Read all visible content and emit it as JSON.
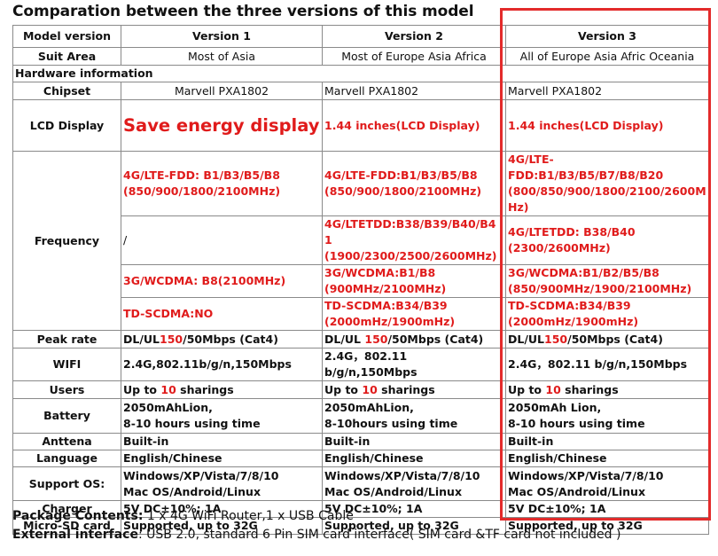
{
  "title": "Comparation between the three versions of this model",
  "header": {
    "col0": "Model version",
    "col1": "Version 1",
    "col2": "Version 2",
    "col3": "Version 3"
  },
  "suit_area": {
    "label": "Suit Area",
    "v1": "Most of Asia",
    "v2": "Most of Europe Asia Africa",
    "v3": "All of Europe Asia Afric Oceania"
  },
  "hardware_section": "Hardware information",
  "chipset": {
    "label": "Chipset",
    "v1": "Marvell PXA1802",
    "v2": "Marvell PXA1802",
    "v3": "Marvell PXA1802"
  },
  "lcd": {
    "label": "LCD Display",
    "v1": "Save energy display",
    "v2": "1.44 inches(LCD Display)",
    "v3": "1.44 inches(LCD Display)"
  },
  "frequency": {
    "label": "Frequency",
    "fdd": {
      "v1": "4G/LTE-FDD: B1/B3/B5/B8 (850/900/1800/2100MHz)",
      "v2": "4G/LTE-FDD:B1/B3/B5/B8 (850/900/1800/2100MHz)",
      "v3": "4G/LTE-FDD:B1/B3/B5/B7/B8/B20 (800/850/900/1800/2100/2600MHz)"
    },
    "tdd": {
      "v1": "/",
      "v2": "4G/LTETDD:B38/B39/B40/B41 (1900/2300/2500/2600MHz)",
      "v3": "4G/LTETDD: B38/B40 (2300/2600MHz)"
    },
    "wcdma": {
      "v1": "3G/WCDMA: B8(2100MHz)",
      "v2": "3G/WCDMA:B1/B8 (900MHz/2100MHz)",
      "v3": "3G/WCDMA:B1/B2/B5/B8 (850/900MHz/1900/2100MHz)"
    },
    "tdscdma": {
      "v1": "TD-SCDMA:NO",
      "v2": "TD-SCDMA:B34/B39 (2000mHz/1900mHz)",
      "v3": "TD-SCDMA:B34/B39 (2000mHz/1900mHz)"
    }
  },
  "peak_rate": {
    "label": "Peak rate",
    "prefix": "DL/UL",
    "value": "150",
    "suffix": "/50Mbps (Cat4)",
    "prefix2": "DL/UL "
  },
  "wifi": {
    "label": "WIFI",
    "v1": "2.4G,802.11b/g/n,150Mbps",
    "v2": "2.4G，802.11 b/g/n,150Mbps",
    "v3": "2.4G，802.11 b/g/n,150Mbps"
  },
  "users": {
    "label": "Users",
    "prefix": "Up to ",
    "value": "10",
    "suffix": " sharings"
  },
  "battery": {
    "label": "Battery",
    "v1_line1": "2050mAhLion,",
    "v1_line2": "8-10 hours using time",
    "v2_line1": "2050mAhLion,",
    "v2_line2": "8-10hours using  time",
    "v3_line1": "2050mAh Lion,",
    "v3_line2": "8-10 hours using time"
  },
  "antenna": {
    "label": "Anttena",
    "value": "Built-in"
  },
  "language": {
    "label": "Language",
    "value": "English/Chinese"
  },
  "os": {
    "label": "Support OS:",
    "line1": "Windows/XP/Vista/7/8/10",
    "line2": "Mac OS/Android/Linux"
  },
  "charger": {
    "label": "Charger",
    "value": "5V DC±10%; 1A"
  },
  "microsd": {
    "label": "Micro-SD card",
    "value": "Supported, up to 32G"
  },
  "footer": {
    "package_label": "Package Contents:",
    "package_value": " 1 x 4G WiFi Router,1 x USB Cable",
    "interface_label": "External interface",
    "interface_value": ": USB 2.0, standard 6 Pin SIM card interface( SIM card &TF card not included )"
  },
  "colors": {
    "accent_red": "#e01b1b",
    "highlight_border": "#e32b2b",
    "grid": "#8a8a8a"
  }
}
